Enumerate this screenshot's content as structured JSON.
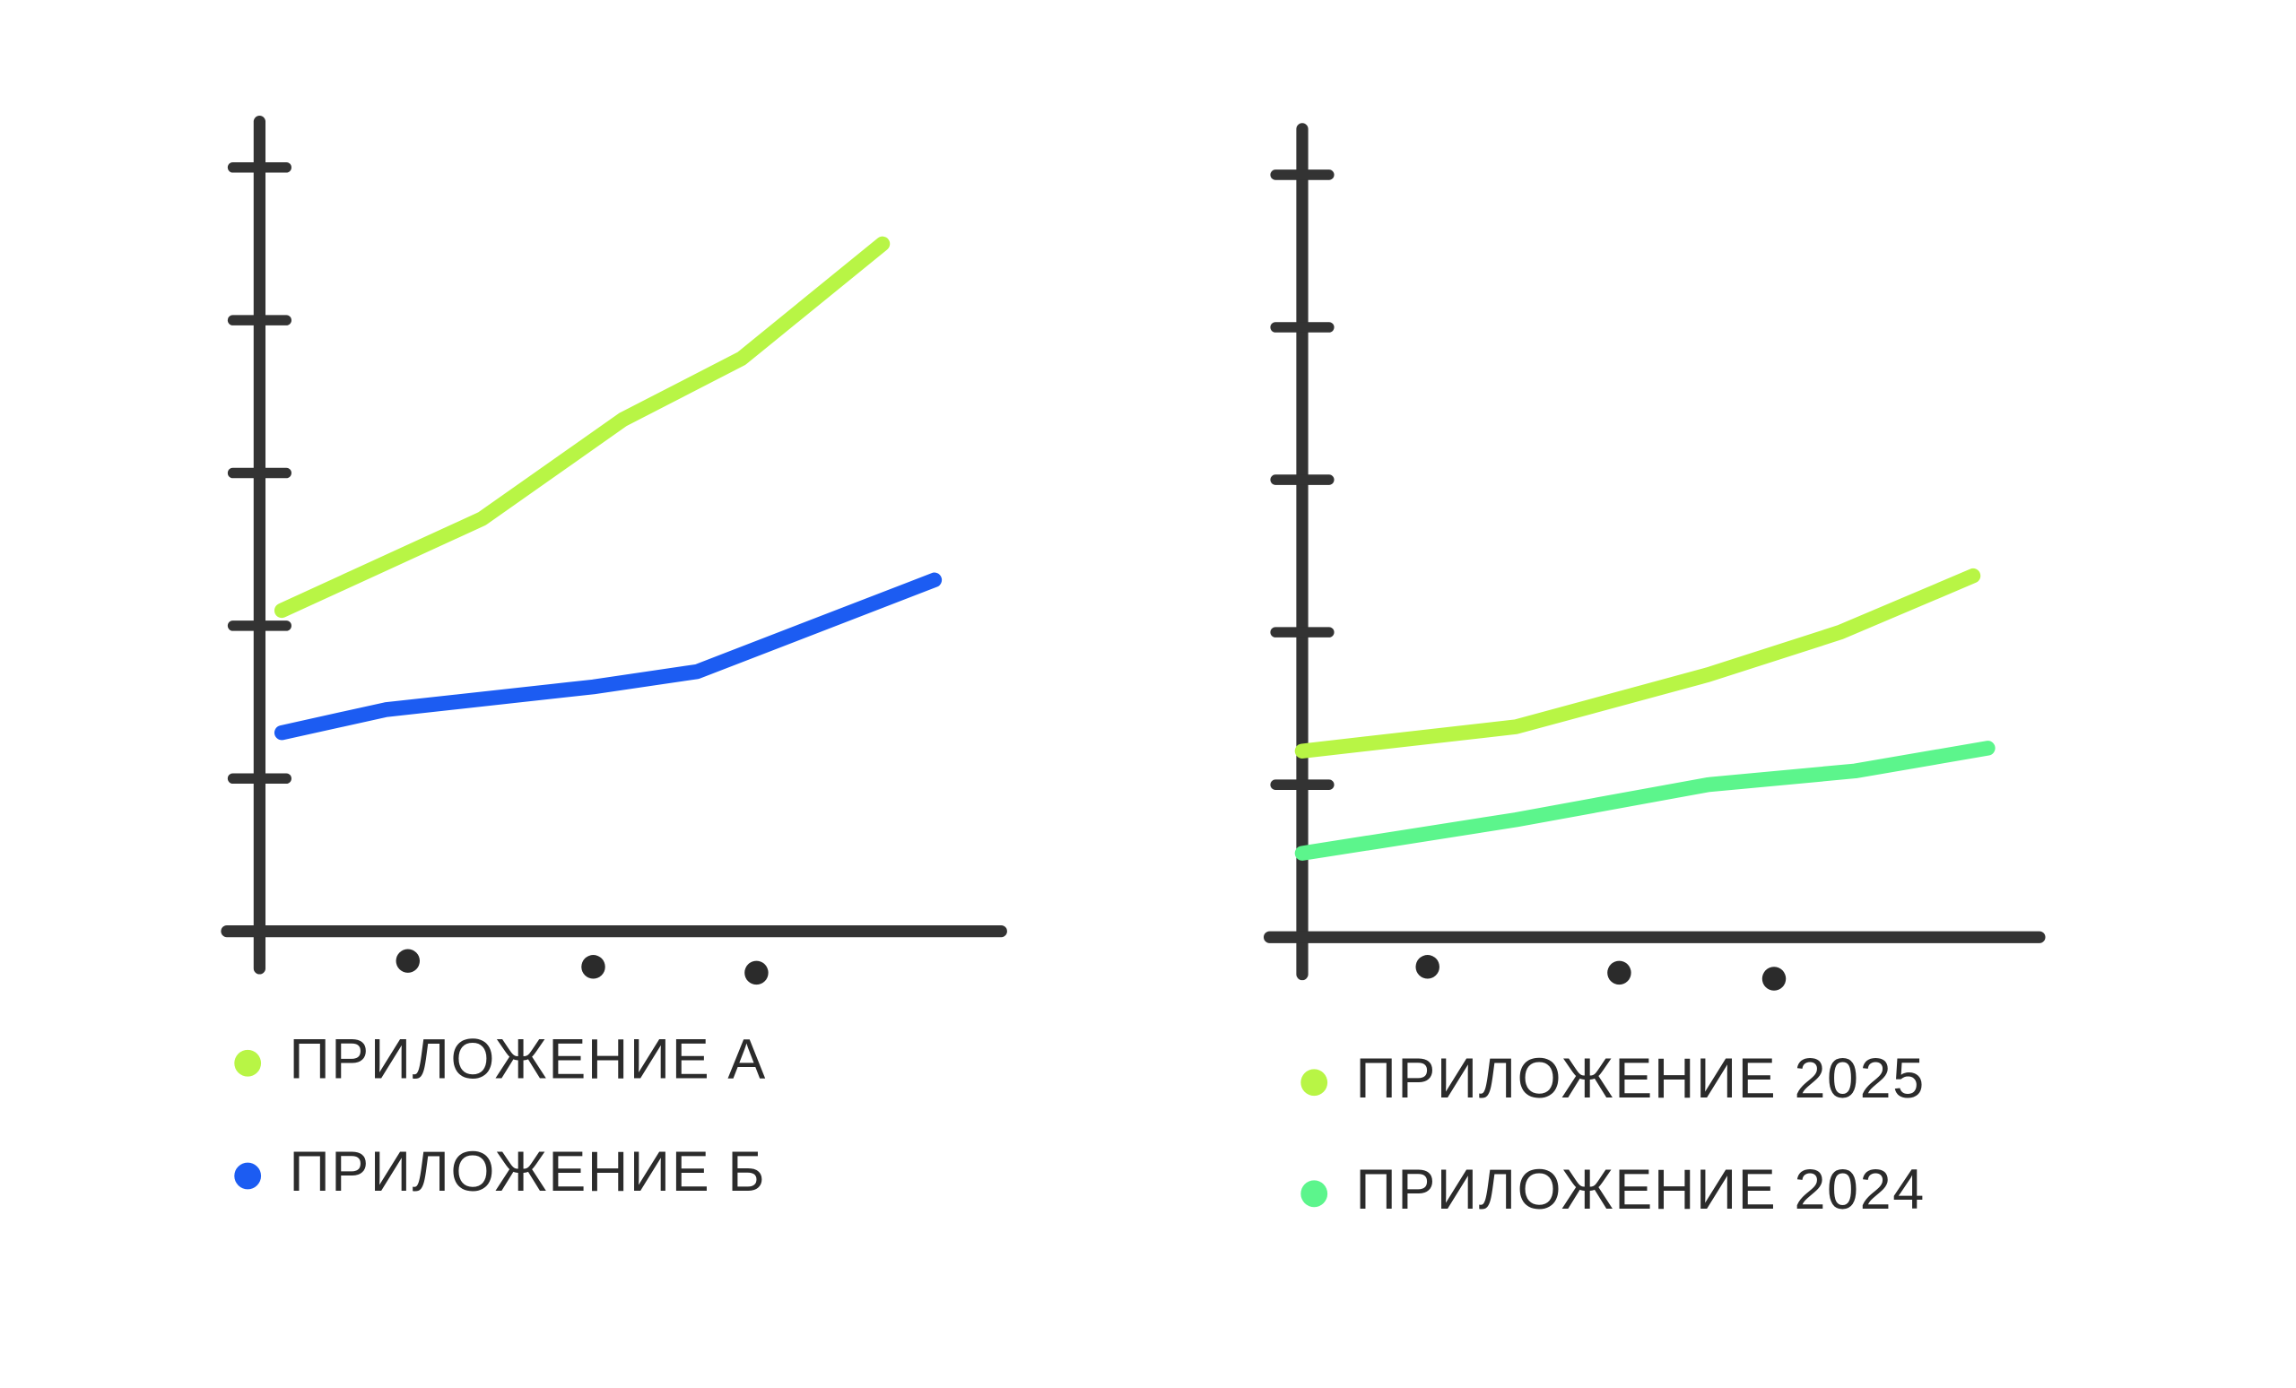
{
  "chart_data": [
    {
      "type": "line",
      "xlim": [
        0,
        10
      ],
      "xticks": [
        2,
        4.5,
        6.7
      ],
      "ylim": [
        0,
        5.3
      ],
      "yticks": [
        1,
        2,
        3,
        4,
        5
      ],
      "series": [
        {
          "name": "ПРИЛОЖЕНИЕ А",
          "color": "#b8f545",
          "x": [
            0.3,
            3,
            4.9,
            6.5,
            8.4
          ],
          "values": [
            2.1,
            2.7,
            3.35,
            3.75,
            4.5
          ]
        },
        {
          "name": "ПРИЛОЖЕНИЕ Б",
          "color": "#1c5cf2",
          "x": [
            0.3,
            1.7,
            4.5,
            5.9,
            9.1
          ],
          "values": [
            1.3,
            1.45,
            1.6,
            1.7,
            2.3
          ]
        }
      ]
    },
    {
      "type": "line",
      "xlim": [
        0,
        10
      ],
      "xticks": [
        1.7,
        4.3,
        6.4
      ],
      "ylim": [
        0,
        5.3
      ],
      "yticks": [
        1,
        2,
        3,
        4,
        5
      ],
      "series": [
        {
          "name": "ПРИЛОЖЕНИЕ 2025",
          "color": "#b8f545",
          "x": [
            0,
            2.9,
            5.5,
            7.3,
            9.1
          ],
          "values": [
            1.22,
            1.38,
            1.72,
            2.0,
            2.37
          ]
        },
        {
          "name": "ПРИЛОЖЕНИЕ 2024",
          "color": "#5cf58c",
          "x": [
            0,
            2.9,
            5.5,
            7.5,
            9.3
          ],
          "values": [
            0.55,
            0.77,
            1.0,
            1.09,
            1.24
          ]
        }
      ]
    }
  ]
}
